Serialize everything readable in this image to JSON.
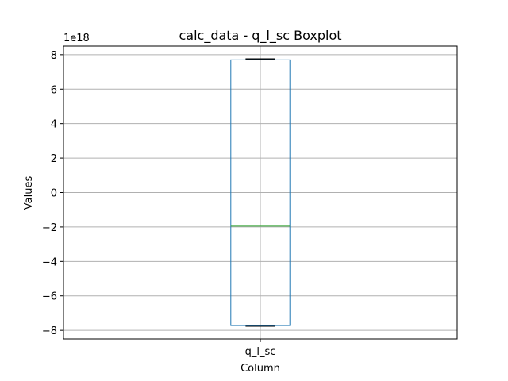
{
  "chart_data": {
    "type": "box",
    "title": "calc_data - q_l_sc Boxplot",
    "xlabel": "Column",
    "ylabel": "Values",
    "y_offset_label": "1e18",
    "y_scale_exponent": 18,
    "categories": [
      "q_l_sc"
    ],
    "boxes": [
      {
        "category": "q_l_sc",
        "whisker_low": -7.75,
        "q1": -7.72,
        "median": -1.95,
        "q3": 7.7,
        "whisker_high": 7.75
      }
    ],
    "ylim": [
      -8.5,
      8.5
    ],
    "yticks": [
      -8,
      -6,
      -4,
      -2,
      0,
      2,
      4,
      6,
      8
    ],
    "ytick_labels": [
      "−8",
      "−6",
      "−4",
      "−2",
      "0",
      "2",
      "4",
      "6",
      "8"
    ],
    "grid": true,
    "colors": {
      "box": "#1f77b4",
      "median": "#2ca02c",
      "whisker": "#000000",
      "grid": "#b0b0b0"
    }
  }
}
